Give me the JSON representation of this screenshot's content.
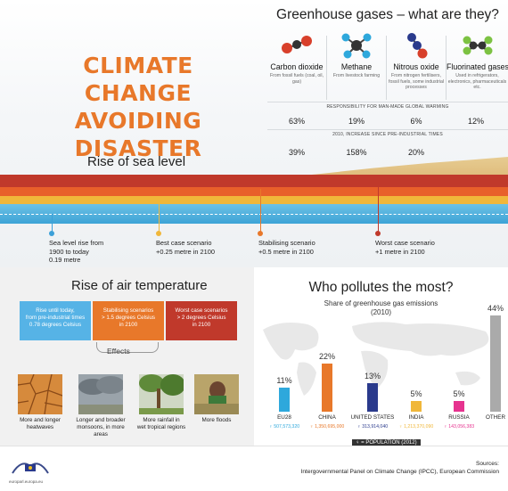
{
  "title_line1": "CLIMATE CHANGE",
  "title_line2": "AVOIDING DISASTER",
  "greenhouse": {
    "title": "Greenhouse gases – what are they?",
    "gases": [
      {
        "name": "Carbon dioxide",
        "desc": "From fossil fuels (coal, oil, gas)",
        "responsibility": "63%",
        "increase": "39%",
        "color": "#d8402b"
      },
      {
        "name": "Methane",
        "desc": "From livestock farming",
        "responsibility": "19%",
        "increase": "158%",
        "color": "#2ea8dc"
      },
      {
        "name": "Nitrous oxide",
        "desc": "From nitrogen fertilisers, fossil fuels, some industrial processes",
        "responsibility": "6%",
        "increase": "20%",
        "color": "#2a3a8c"
      },
      {
        "name": "Fluorinated gases",
        "desc": "Used in refrigerators, electronics, pharmaceuticals etc.",
        "responsibility": "12%",
        "increase": "",
        "color": "#7cc242"
      }
    ],
    "responsibility_label": "RESPONSIBILITY FOR MAN-MADE GLOBAL WARMING",
    "increase_label": "2010, INCREASE SINCE PRE-INDUSTRIAL TIMES"
  },
  "sea": {
    "title": "Rise of sea level",
    "scenarios": [
      {
        "line1": "Sea level rise from",
        "line2": "1900 to today",
        "line3": "0.19 metre",
        "color": "#3ca0d8"
      },
      {
        "line1": "Best case scenario",
        "line2": "+0.25 metre in 2100",
        "line3": "",
        "color": "#f0b73a"
      },
      {
        "line1": "Stabilising scenario",
        "line2": "+0.5 metre in 2100",
        "line3": "",
        "color": "#e8782a"
      },
      {
        "line1": "Worst case scenario",
        "line2": "+1 metre in 2100",
        "line3": "",
        "color": "#c0392b"
      }
    ]
  },
  "air": {
    "title": "Rise of air temperature",
    "boxes": [
      {
        "text1": "Rise until today,",
        "text2": "from pre-industrial times",
        "text3": "0.78 degrees Celsius",
        "color": "#56b3e6"
      },
      {
        "text1": "Stabilising scenarios",
        "text2": "> 1.5 degrees Celsius",
        "text3": "in 2100",
        "color": "#e8782a"
      },
      {
        "text1": "Worst case scenarios",
        "text2": "> 2 degrees Celsius",
        "text3": "in 2100",
        "color": "#c0392b"
      }
    ],
    "effects_label": "Effects",
    "effects": [
      {
        "line1": "More and longer",
        "line2": "heatwaves",
        "icon": "cracked-earth-icon"
      },
      {
        "line1": "Longer and broader",
        "line2": "monsoons, in more areas",
        "icon": "storm-clouds-icon"
      },
      {
        "line1": "More rainfall in",
        "line2": "wet tropical regions",
        "icon": "rainforest-icon"
      },
      {
        "line1": "More floods",
        "line2": "",
        "icon": "flood-icon"
      }
    ]
  },
  "polluters": {
    "title": "Who pollutes the most?",
    "subtitle1": "Share of greenhouse gas emissions",
    "subtitle2": "(2010)",
    "legend": "= POPULATION (2012)"
  },
  "chart_data": {
    "type": "bar",
    "title": "Who pollutes the most?",
    "subtitle": "Share of greenhouse gas emissions (2010)",
    "categories": [
      "EU28",
      "CHINA",
      "UNITED STATES",
      "INDIA",
      "RUSSIA",
      "OTHER"
    ],
    "values": [
      11,
      22,
      13,
      5,
      5,
      44
    ],
    "value_labels": [
      "11%",
      "22%",
      "13%",
      "5%",
      "5%",
      "44%"
    ],
    "population": [
      "507,573,320",
      "1,350,695,000",
      "313,914,040",
      "1,213,370,090",
      "143,056,383",
      ""
    ],
    "colors": [
      "#2ea8dc",
      "#e8782a",
      "#2a3a8c",
      "#f0b73a",
      "#e6338f",
      "#aaaaaa"
    ],
    "ylim": [
      0,
      44
    ]
  },
  "footer": {
    "url": "europarl.europa.eu",
    "sources_label": "Sources:",
    "sources": "Intergovernmental Panel on Climate Change (IPCC), European Commission"
  }
}
